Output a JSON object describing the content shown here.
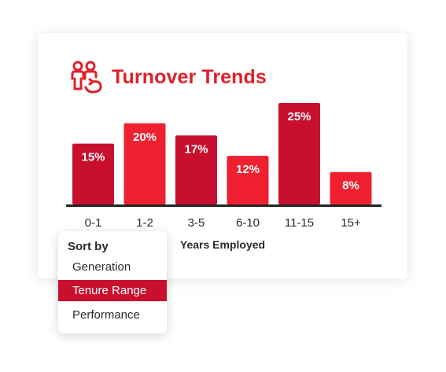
{
  "widget": {
    "title": "Turnover Trends",
    "title_icon": "people-cycle-icon",
    "accent_color": "#e0202a",
    "dark_bar_color": "#c8102e",
    "light_bar_color": "#ef2130"
  },
  "chart_data": {
    "type": "bar",
    "title": "Turnover Trends",
    "xlabel": "Years Employed",
    "ylabel": "",
    "categories": [
      "0-1",
      "1-2",
      "3-5",
      "6-10",
      "11-15",
      "15+"
    ],
    "values": [
      15,
      20,
      17,
      12,
      25,
      8
    ],
    "value_labels": [
      "15%",
      "20%",
      "17%",
      "12%",
      "25%",
      "8%"
    ],
    "value_unit": "%",
    "ylim": [
      0,
      25
    ],
    "grid": false,
    "legend": "none",
    "bar_colors": [
      "#c8102e",
      "#ef2130",
      "#c8102e",
      "#ef2130",
      "#c8102e",
      "#ef2130"
    ]
  },
  "sort_menu": {
    "label": "Sort by",
    "options": [
      "Generation",
      "Tenure Range",
      "Performance"
    ],
    "selected": "Tenure Range"
  }
}
